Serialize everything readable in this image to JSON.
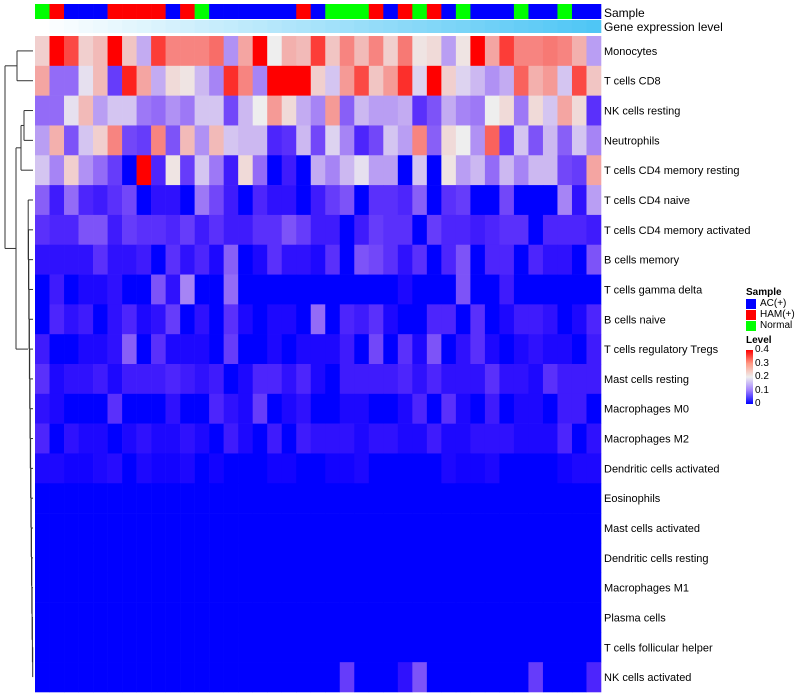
{
  "chart_data": {
    "type": "heatmap",
    "title": "",
    "columns_count": 39,
    "annotations": {
      "sample_label": "Sample",
      "gene_expression_label": "Gene expression level",
      "sample": [
        "Normal",
        "HAM(+)",
        "AC(+)",
        "AC(+)",
        "AC(+)",
        "HAM(+)",
        "HAM(+)",
        "HAM(+)",
        "HAM(+)",
        "AC(+)",
        "HAM(+)",
        "Normal",
        "AC(+)",
        "AC(+)",
        "AC(+)",
        "AC(+)",
        "AC(+)",
        "AC(+)",
        "HAM(+)",
        "AC(+)",
        "Normal",
        "Normal",
        "Normal",
        "HAM(+)",
        "AC(+)",
        "HAM(+)",
        "Normal",
        "HAM(+)",
        "AC(+)",
        "Normal",
        "AC(+)",
        "AC(+)",
        "AC(+)",
        "Normal",
        "AC(+)",
        "AC(+)",
        "Normal",
        "AC(+)",
        "AC(+)"
      ],
      "gene_expression_level": [
        0.0,
        0.03,
        0.05,
        0.08,
        0.1,
        0.13,
        0.16,
        0.18,
        0.21,
        0.24,
        0.26,
        0.29,
        0.32,
        0.34,
        0.37,
        0.39,
        0.42,
        0.45,
        0.47,
        0.5,
        0.53,
        0.55,
        0.58,
        0.61,
        0.63,
        0.66,
        0.68,
        0.71,
        0.74,
        0.76,
        0.79,
        0.82,
        0.84,
        0.87,
        0.89,
        0.92,
        0.95,
        0.97,
        1.0
      ]
    },
    "rows": [
      {
        "name": "Monocytes",
        "values": [
          0.23,
          0.4,
          0.35,
          0.23,
          0.25,
          0.4,
          0.24,
          0.15,
          0.36,
          0.3,
          0.3,
          0.3,
          0.32,
          0.13,
          0.27,
          0.4,
          0.2,
          0.26,
          0.25,
          0.36,
          0.24,
          0.3,
          0.25,
          0.3,
          0.23,
          0.31,
          0.21,
          0.22,
          0.14,
          0.21,
          0.4,
          0.27,
          0.36,
          0.3,
          0.3,
          0.31,
          0.3,
          0.26,
          0.14
        ]
      },
      {
        "name": "T cells CD8",
        "values": [
          0.27,
          0.1,
          0.1,
          0.19,
          0.25,
          0.06,
          0.38,
          0.27,
          0.15,
          0.22,
          0.21,
          0.16,
          0.12,
          0.37,
          0.3,
          0.12,
          0.4,
          0.4,
          0.4,
          0.23,
          0.17,
          0.28,
          0.35,
          0.24,
          0.28,
          0.37,
          0.18,
          0.4,
          0.23,
          0.18,
          0.16,
          0.13,
          0.15,
          0.33,
          0.26,
          0.28,
          0.17,
          0.35,
          0.24
        ]
      },
      {
        "name": "NK cells resting",
        "values": [
          0.1,
          0.1,
          0.19,
          0.25,
          0.14,
          0.17,
          0.17,
          0.11,
          0.1,
          0.13,
          0.11,
          0.17,
          0.17,
          0.07,
          0.16,
          0.2,
          0.28,
          0.22,
          0.15,
          0.12,
          0.28,
          0.09,
          0.16,
          0.14,
          0.14,
          0.15,
          0.05,
          0.08,
          0.15,
          0.12,
          0.11,
          0.2,
          0.22,
          0.11,
          0.22,
          0.17,
          0.27,
          0.22,
          0.05
        ]
      },
      {
        "name": "Neutrophils",
        "values": [
          0.14,
          0.26,
          0.08,
          0.17,
          0.23,
          0.3,
          0.07,
          0.06,
          0.3,
          0.08,
          0.25,
          0.13,
          0.25,
          0.17,
          0.16,
          0.16,
          0.04,
          0.05,
          0.16,
          0.07,
          0.18,
          0.12,
          0.04,
          0.07,
          0.17,
          0.14,
          0.3,
          0.09,
          0.22,
          0.2,
          0.13,
          0.33,
          0.06,
          0.17,
          0.08,
          0.16,
          0.09,
          0.17,
          0.12
        ]
      },
      {
        "name": "T cells CD4 memory resting",
        "values": [
          0.17,
          0.12,
          0.23,
          0.13,
          0.1,
          0.06,
          0.0,
          0.4,
          0.04,
          0.21,
          0.06,
          0.17,
          0.11,
          0.03,
          0.22,
          0.1,
          0.0,
          0.03,
          0.0,
          0.15,
          0.12,
          0.16,
          0.19,
          0.14,
          0.14,
          0.0,
          0.17,
          0.0,
          0.21,
          0.14,
          0.16,
          0.1,
          0.16,
          0.12,
          0.16,
          0.16,
          0.07,
          0.06,
          0.27
        ]
      },
      {
        "name": "T cells CD4 naive",
        "values": [
          0.09,
          0.03,
          0.1,
          0.04,
          0.03,
          0.05,
          0.07,
          0.0,
          0.02,
          0.02,
          0.0,
          0.11,
          0.07,
          0.03,
          0.0,
          0.04,
          0.02,
          0.02,
          0.0,
          0.03,
          0.06,
          0.08,
          0.0,
          0.05,
          0.05,
          0.04,
          0.09,
          0.0,
          0.05,
          0.06,
          0.0,
          0.0,
          0.07,
          0.0,
          0.0,
          0.0,
          0.12,
          0.02,
          0.14
        ]
      },
      {
        "name": "T cells CD4 memory activated",
        "values": [
          0.05,
          0.04,
          0.04,
          0.08,
          0.08,
          0.03,
          0.06,
          0.05,
          0.05,
          0.04,
          0.06,
          0.03,
          0.05,
          0.03,
          0.03,
          0.05,
          0.05,
          0.08,
          0.06,
          0.03,
          0.03,
          0.0,
          0.03,
          0.06,
          0.05,
          0.05,
          0.0,
          0.06,
          0.04,
          0.04,
          0.03,
          0.04,
          0.05,
          0.05,
          0.0,
          0.04,
          0.04,
          0.04,
          0.03
        ]
      },
      {
        "name": "B cells memory",
        "values": [
          0.02,
          0.02,
          0.02,
          0.02,
          0.05,
          0.02,
          0.02,
          0.03,
          0.0,
          0.05,
          0.02,
          0.04,
          0.01,
          0.09,
          0.0,
          0.01,
          0.05,
          0.02,
          0.02,
          0.01,
          0.05,
          0.0,
          0.08,
          0.07,
          0.05,
          0.02,
          0.05,
          0.0,
          0.04,
          0.08,
          0.0,
          0.04,
          0.04,
          0.0,
          0.04,
          0.02,
          0.02,
          0.0,
          0.08
        ]
      },
      {
        "name": "T cells gamma delta",
        "values": [
          0.0,
          0.03,
          0.0,
          0.01,
          0.01,
          0.02,
          0.0,
          0.0,
          0.08,
          0.02,
          0.12,
          0.0,
          0.0,
          0.1,
          0.0,
          0.0,
          0.0,
          0.0,
          0.0,
          0.0,
          0.0,
          0.0,
          0.0,
          0.0,
          0.0,
          0.01,
          0.0,
          0.0,
          0.0,
          0.08,
          0.0,
          0.0,
          0.03,
          0.0,
          0.0,
          0.0,
          0.0,
          0.0,
          0.0
        ]
      },
      {
        "name": "B cells naive",
        "values": [
          0.0,
          0.04,
          0.02,
          0.03,
          0.0,
          0.02,
          0.04,
          0.01,
          0.02,
          0.06,
          0.0,
          0.02,
          0.0,
          0.05,
          0.01,
          0.0,
          0.01,
          0.01,
          0.0,
          0.1,
          0.0,
          0.04,
          0.03,
          0.05,
          0.01,
          0.0,
          0.0,
          0.04,
          0.04,
          0.0,
          0.05,
          0.0,
          0.01,
          0.03,
          0.03,
          0.02,
          0.0,
          0.01,
          0.04
        ]
      },
      {
        "name": "T cells regulatory  Tregs",
        "values": [
          0.03,
          0.0,
          0.0,
          0.01,
          0.01,
          0.02,
          0.09,
          0.0,
          0.05,
          0.01,
          0.01,
          0.01,
          0.0,
          0.06,
          0.0,
          0.0,
          0.01,
          0.0,
          0.01,
          0.01,
          0.01,
          0.03,
          0.0,
          0.07,
          0.0,
          0.05,
          0.01,
          0.08,
          0.0,
          0.02,
          0.05,
          0.01,
          0.0,
          0.01,
          0.02,
          0.01,
          0.01,
          0.0,
          0.03
        ]
      },
      {
        "name": "Mast cells resting",
        "values": [
          0.05,
          0.01,
          0.02,
          0.02,
          0.03,
          0.01,
          0.03,
          0.03,
          0.03,
          0.04,
          0.03,
          0.02,
          0.03,
          0.0,
          0.01,
          0.04,
          0.04,
          0.02,
          0.04,
          0.01,
          0.0,
          0.03,
          0.03,
          0.03,
          0.03,
          0.04,
          0.02,
          0.04,
          0.02,
          0.02,
          0.02,
          0.05,
          0.02,
          0.02,
          0.01,
          0.05,
          0.03,
          0.03,
          0.03
        ]
      },
      {
        "name": "Macrophages M0",
        "values": [
          0.02,
          0.01,
          0.0,
          0.0,
          0.0,
          0.05,
          0.0,
          0.0,
          0.0,
          0.02,
          0.0,
          0.0,
          0.04,
          0.02,
          0.01,
          0.06,
          0.0,
          0.01,
          0.02,
          0.0,
          0.0,
          0.01,
          0.01,
          0.0,
          0.0,
          0.01,
          0.04,
          0.0,
          0.05,
          0.01,
          0.0,
          0.03,
          0.0,
          0.01,
          0.01,
          0.0,
          0.03,
          0.03,
          0.0
        ]
      },
      {
        "name": "Macrophages M2",
        "values": [
          0.04,
          0.0,
          0.02,
          0.01,
          0.01,
          0.0,
          0.01,
          0.02,
          0.01,
          0.01,
          0.02,
          0.01,
          0.0,
          0.03,
          0.01,
          0.0,
          0.03,
          0.0,
          0.03,
          0.02,
          0.02,
          0.02,
          0.01,
          0.02,
          0.02,
          0.01,
          0.01,
          0.03,
          0.01,
          0.01,
          0.02,
          0.02,
          0.02,
          0.01,
          0.01,
          0.01,
          0.04,
          0.0,
          0.02
        ]
      },
      {
        "name": "Dendritic cells activated",
        "values": [
          0.01,
          0.01,
          0.005,
          0.005,
          0.01,
          0.015,
          0.0,
          0.01,
          0.005,
          0.005,
          0.01,
          0.0,
          0.005,
          0.0,
          0.0,
          0.0,
          0.005,
          0.005,
          0.0,
          0.0,
          0.005,
          0.005,
          0.01,
          0.0,
          0.0,
          0.0,
          0.0,
          0.0,
          0.01,
          0.005,
          0.005,
          0.01,
          0.0,
          0.0,
          0.0,
          0.0,
          0.005,
          0.01,
          0.01
        ]
      },
      {
        "name": "Eosinophils",
        "values": [
          0,
          0,
          0,
          0,
          0,
          0,
          0,
          0,
          0,
          0,
          0,
          0,
          0,
          0,
          0,
          0,
          0,
          0,
          0,
          0,
          0,
          0,
          0,
          0,
          0,
          0,
          0,
          0,
          0,
          0,
          0,
          0,
          0,
          0,
          0,
          0,
          0,
          0,
          0
        ]
      },
      {
        "name": "Mast cells activated",
        "values": [
          0,
          0,
          0,
          0,
          0,
          0,
          0,
          0,
          0,
          0,
          0,
          0,
          0,
          0,
          0,
          0,
          0,
          0,
          0,
          0,
          0,
          0,
          0,
          0,
          0,
          0,
          0,
          0,
          0,
          0,
          0,
          0,
          0,
          0,
          0,
          0,
          0,
          0,
          0
        ]
      },
      {
        "name": "Dendritic cells resting",
        "values": [
          0,
          0,
          0,
          0,
          0,
          0,
          0,
          0,
          0,
          0,
          0,
          0,
          0,
          0,
          0,
          0,
          0,
          0,
          0,
          0,
          0,
          0,
          0,
          0,
          0,
          0,
          0,
          0,
          0,
          0,
          0,
          0,
          0,
          0,
          0,
          0,
          0,
          0,
          0
        ]
      },
      {
        "name": "Macrophages M1",
        "values": [
          0,
          0,
          0,
          0,
          0,
          0,
          0,
          0,
          0,
          0,
          0,
          0,
          0,
          0,
          0,
          0,
          0,
          0,
          0,
          0,
          0,
          0,
          0,
          0,
          0,
          0,
          0,
          0,
          0,
          0,
          0,
          0,
          0,
          0,
          0,
          0,
          0,
          0,
          0
        ]
      },
      {
        "name": "Plasma cells",
        "values": [
          0,
          0,
          0,
          0,
          0,
          0,
          0,
          0,
          0,
          0,
          0,
          0,
          0,
          0,
          0,
          0,
          0,
          0,
          0,
          0,
          0,
          0,
          0,
          0,
          0,
          0,
          0,
          0,
          0,
          0,
          0,
          0,
          0,
          0,
          0,
          0,
          0,
          0,
          0
        ]
      },
      {
        "name": "T cells follicular helper",
        "values": [
          0,
          0,
          0,
          0,
          0,
          0,
          0,
          0,
          0,
          0,
          0,
          0,
          0,
          0,
          0,
          0,
          0,
          0,
          0,
          0,
          0,
          0,
          0,
          0,
          0,
          0,
          0,
          0,
          0,
          0,
          0,
          0,
          0,
          0,
          0,
          0,
          0,
          0,
          0
        ]
      },
      {
        "name": "NK cells activated",
        "values": [
          0,
          0,
          0,
          0,
          0,
          0,
          0,
          0,
          0,
          0,
          0,
          0,
          0,
          0,
          0,
          0,
          0,
          0,
          0,
          0,
          0,
          0.06,
          0,
          0,
          0,
          0.02,
          0.08,
          0,
          0,
          0,
          0,
          0,
          0,
          0,
          0.06,
          0,
          0,
          0,
          0.04
        ]
      }
    ],
    "color_scale": {
      "min": 0,
      "mid": 0.2,
      "max": 0.4,
      "low_color": "#0000ff",
      "mid_color": "#eeeeee",
      "high_color": "#ff0000"
    },
    "legend": {
      "placement": "right",
      "sample_title": "Sample",
      "sample_items": [
        {
          "label": "AC(+)",
          "color": "#0000ff"
        },
        {
          "label": "HAM(+)",
          "color": "#ff0000"
        },
        {
          "label": "Normal",
          "color": "#00ff00"
        }
      ],
      "level_title": "Level",
      "level_ticks": [
        "0.4",
        "0.3",
        "0.2",
        "0.1",
        "0"
      ]
    },
    "gene_expression_colors": {
      "low": "#ffffff",
      "high": "#4fc6f5"
    }
  }
}
